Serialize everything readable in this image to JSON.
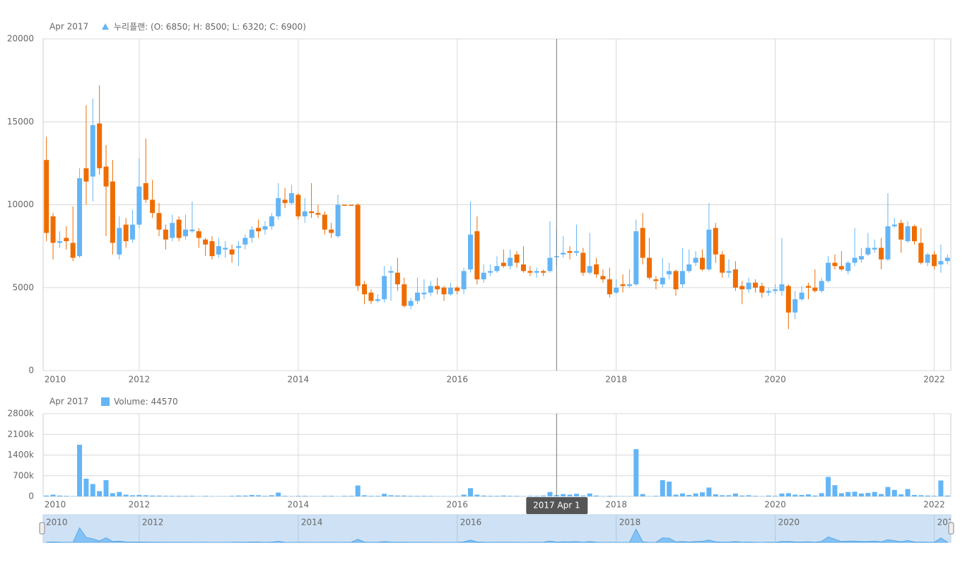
{
  "chart_data": [
    {
      "type": "candlestick",
      "legend_date": "Apr 2017",
      "legend_suffix": ": (O: 6850; H: 8500; L: 6320; C: 6900)",
      "crosshair_x": "2017-04",
      "crosshair_label": "2017 Apr 1",
      "x": [
        "2010-11",
        "2010-12",
        "2011-01",
        "2011-02",
        "2011-03",
        "2011-04",
        "2011-05",
        "2011-06",
        "2011-07",
        "2011-08",
        "2011-09",
        "2011-10",
        "2011-11",
        "2011-12",
        "2012-01",
        "2012-02",
        "2012-03",
        "2012-04",
        "2012-05",
        "2012-06",
        "2012-07",
        "2012-08",
        "2012-09",
        "2012-10",
        "2012-11",
        "2012-12",
        "2013-01",
        "2013-02",
        "2013-03",
        "2013-04",
        "2013-05",
        "2013-06",
        "2013-07",
        "2013-08",
        "2013-09",
        "2013-10",
        "2013-11",
        "2013-12",
        "2014-01",
        "2014-02",
        "2014-03",
        "2014-04",
        "2014-05",
        "2014-06",
        "2014-07",
        "2014-08",
        "2014-09",
        "2014-10",
        "2014-11",
        "2014-12",
        "2015-01",
        "2015-02",
        "2015-03",
        "2015-04",
        "2015-05",
        "2015-06",
        "2015-07",
        "2015-08",
        "2015-09",
        "2015-10",
        "2015-11",
        "2015-12",
        "2016-01",
        "2016-02",
        "2016-03",
        "2016-04",
        "2016-05",
        "2016-06",
        "2016-07",
        "2016-08",
        "2016-09",
        "2016-10",
        "2016-11",
        "2016-12",
        "2017-01",
        "2017-02",
        "2017-03",
        "2017-04",
        "2017-05",
        "2017-06",
        "2017-07",
        "2017-08",
        "2017-09",
        "2017-10",
        "2017-11",
        "2017-12",
        "2018-01",
        "2018-02",
        "2018-03",
        "2018-04",
        "2018-05",
        "2018-06",
        "2018-07",
        "2018-08",
        "2018-09",
        "2018-10",
        "2018-11",
        "2018-12",
        "2019-01",
        "2019-02",
        "2019-03",
        "2019-04",
        "2019-05",
        "2019-06",
        "2019-07",
        "2019-08",
        "2019-09",
        "2019-10",
        "2019-11",
        "2019-12",
        "2020-01",
        "2020-02",
        "2020-03",
        "2020-04",
        "2020-05",
        "2020-06",
        "2020-07",
        "2020-08",
        "2020-09",
        "2020-10",
        "2020-11",
        "2020-12",
        "2021-01",
        "2021-02",
        "2021-03",
        "2021-04",
        "2021-05",
        "2021-06",
        "2021-07",
        "2021-08",
        "2021-09",
        "2021-10",
        "2021-11",
        "2021-12",
        "2022-01",
        "2022-02",
        "2022-03"
      ],
      "series": [
        {
          "name": "누리플랜",
          "rising_color": "#64b5f6",
          "falling_color": "#ef6c00",
          "open": [
            12700,
            9300,
            7700,
            8000,
            7700,
            6900,
            12200,
            11700,
            14900,
            12300,
            11400,
            7000,
            8800,
            7900,
            8800,
            11300,
            10300,
            9500,
            8500,
            8000,
            9100,
            8100,
            8400,
            8400,
            7900,
            7800,
            7000,
            7300,
            7300,
            7400,
            7600,
            8000,
            8600,
            8500,
            8700,
            9300,
            10300,
            10100,
            10600,
            9300,
            9600,
            9500,
            9400,
            8500,
            8100,
            10000,
            10000,
            10000,
            5200,
            4700,
            4200,
            4300,
            5900,
            5900,
            5200,
            3900,
            4200,
            4600,
            4700,
            5100,
            5000,
            4600,
            5000,
            4900,
            6100,
            8400,
            5500,
            5900,
            6000,
            6500,
            6300,
            7000,
            6400,
            6000,
            5900,
            6000,
            6000,
            6850,
            7000,
            7200,
            7100,
            7100,
            5900,
            6400,
            5700,
            5500,
            4700,
            5200,
            5100,
            5200,
            8600,
            6800,
            5500,
            5200,
            5800,
            6000,
            5200,
            6000,
            6500,
            6800,
            6100,
            8600,
            7000,
            5900,
            6100,
            5100,
            4900,
            5300,
            5100,
            4700,
            4800,
            4800,
            5100,
            3500,
            4300,
            5100,
            5000,
            4800,
            5400,
            6500,
            6300,
            6000,
            6500,
            6700,
            7000,
            7300,
            7400,
            6700,
            8700,
            8900,
            7800,
            8700,
            7700,
            6500,
            7000,
            6400,
            6600
          ],
          "high": [
            14100,
            9500,
            8400,
            8700,
            9900,
            12200,
            16000,
            16400,
            17200,
            13600,
            12700,
            9300,
            9200,
            9700,
            12800,
            14000,
            11500,
            10100,
            8800,
            9400,
            9300,
            9400,
            10200,
            8600,
            8000,
            8100,
            8000,
            7800,
            7600,
            7800,
            8200,
            8700,
            9100,
            9000,
            9500,
            11300,
            11000,
            11200,
            10700,
            10400,
            11300,
            10000,
            9600,
            8900,
            10600,
            10000,
            10000,
            10100,
            5400,
            4900,
            4600,
            6300,
            6300,
            6800,
            5600,
            4400,
            5600,
            5500,
            5400,
            5600,
            5100,
            5300,
            5100,
            6200,
            10200,
            9300,
            6400,
            6400,
            6900,
            7300,
            7300,
            7200,
            7500,
            6300,
            6200,
            6100,
            9000,
            8500,
            8100,
            7500,
            8800,
            7400,
            8300,
            6800,
            6100,
            6200,
            5500,
            5800,
            6100,
            9100,
            9500,
            8000,
            5700,
            6800,
            6500,
            6100,
            7400,
            7300,
            7200,
            7300,
            10100,
            8900,
            7200,
            6700,
            6600,
            5400,
            5600,
            5500,
            5300,
            5000,
            5200,
            8000,
            5200,
            4800,
            5100,
            5300,
            6100,
            5600,
            6900,
            7000,
            7200,
            6600,
            8600,
            7400,
            8300,
            7900,
            8000,
            10700,
            9200,
            9100,
            9000,
            8800,
            8600,
            7100,
            7200,
            7600,
            7000
          ],
          "low": [
            7800,
            6700,
            7400,
            7300,
            6600,
            6800,
            10000,
            10200,
            11800,
            8100,
            7000,
            6700,
            7400,
            7700,
            8600,
            10100,
            9200,
            8100,
            7300,
            7800,
            7800,
            7900,
            8300,
            7400,
            6900,
            6700,
            6800,
            6800,
            6500,
            6300,
            7300,
            7700,
            8000,
            8200,
            8500,
            9100,
            9800,
            10000,
            9100,
            8900,
            9200,
            9200,
            8200,
            8000,
            8000,
            9950,
            9950,
            4800,
            4000,
            4000,
            4100,
            4100,
            4200,
            4800,
            3800,
            3700,
            4000,
            4300,
            4500,
            4600,
            4200,
            4500,
            4600,
            4600,
            5900,
            5200,
            5300,
            5700,
            5900,
            6200,
            6100,
            6200,
            5900,
            5700,
            5600,
            5700,
            5900,
            6320,
            6800,
            6700,
            6900,
            5700,
            5800,
            5600,
            5300,
            4400,
            4600,
            4700,
            5000,
            5100,
            6400,
            5500,
            4900,
            5000,
            5500,
            4500,
            5000,
            5900,
            6300,
            6000,
            6000,
            6500,
            5600,
            5600,
            4800,
            4000,
            4700,
            4700,
            4400,
            4500,
            4600,
            4500,
            2500,
            3100,
            4200,
            4300,
            4700,
            4700,
            5300,
            6100,
            6000,
            5800,
            6300,
            6500,
            6900,
            7100,
            6100,
            6600,
            8600,
            7100,
            7700,
            7600,
            6400,
            6300,
            6100,
            5900,
            6400
          ],
          "close": [
            8300,
            7700,
            7800,
            7800,
            6800,
            11600,
            11400,
            14800,
            12200,
            11100,
            7700,
            8600,
            7800,
            8800,
            11100,
            10300,
            9500,
            8500,
            7900,
            8900,
            8000,
            8500,
            8500,
            8000,
            7600,
            6900,
            7500,
            7400,
            7000,
            7500,
            8000,
            8500,
            8400,
            8700,
            9300,
            10400,
            10100,
            10700,
            9300,
            9600,
            9500,
            9400,
            8500,
            8300,
            10000,
            10000,
            10000,
            5100,
            4600,
            4200,
            4300,
            5700,
            6000,
            5200,
            3900,
            4200,
            4700,
            4700,
            5100,
            4900,
            4600,
            5000,
            4800,
            6000,
            8200,
            5500,
            5900,
            6000,
            6300,
            6300,
            6800,
            6500,
            6000,
            5900,
            6000,
            5900,
            6800,
            6900,
            7100,
            7100,
            7200,
            5900,
            6300,
            5800,
            5500,
            4600,
            5000,
            5100,
            5200,
            8400,
            6800,
            5600,
            5400,
            5600,
            6000,
            4900,
            6000,
            6400,
            6800,
            6100,
            8500,
            7000,
            5900,
            6000,
            5000,
            4900,
            5300,
            5000,
            4700,
            4800,
            4900,
            5200,
            3500,
            4300,
            4700,
            5000,
            4800,
            5400,
            6500,
            6300,
            6100,
            6500,
            6800,
            6900,
            7400,
            7400,
            6700,
            8700,
            8800,
            7900,
            8700,
            7800,
            6500,
            7000,
            6300,
            6600,
            6800
          ]
        }
      ],
      "xlim": [
        "2010-11",
        "2022-03"
      ],
      "xticks": [
        {
          "value": "2010-11",
          "label": "2010"
        },
        {
          "value": "2012-01",
          "label": "2012"
        },
        {
          "value": "2014-01",
          "label": "2014"
        },
        {
          "value": "2016-01",
          "label": "2016"
        },
        {
          "value": "2018-01",
          "label": "2018"
        },
        {
          "value": "2020-01",
          "label": "2020"
        },
        {
          "value": "2022-01",
          "label": "2022"
        }
      ],
      "ylim": [
        0,
        20000
      ],
      "yticks": [
        0,
        5000,
        10000,
        15000,
        20000
      ],
      "grid": true
    },
    {
      "type": "column",
      "legend_date": "Apr 2017",
      "legend_suffix": ": 44570",
      "series": [
        {
          "name": "Volume",
          "color": "#64b5f6",
          "values": [
            30000,
            60000,
            30000,
            20000,
            10000,
            1750000,
            600000,
            420000,
            180000,
            550000,
            110000,
            150000,
            60000,
            40000,
            50000,
            40000,
            30000,
            30000,
            20000,
            20000,
            20000,
            20000,
            20000,
            10000,
            20000,
            10000,
            10000,
            10000,
            20000,
            30000,
            30000,
            50000,
            40000,
            20000,
            40000,
            130000,
            20000,
            10000,
            20000,
            20000,
            10000,
            10000,
            20000,
            20000,
            10000,
            20000,
            20000,
            370000,
            40000,
            20000,
            20000,
            90000,
            40000,
            30000,
            30000,
            20000,
            20000,
            20000,
            20000,
            10000,
            10000,
            10000,
            10000,
            60000,
            280000,
            60000,
            30000,
            20000,
            20000,
            30000,
            20000,
            20000,
            10000,
            20000,
            20000,
            30000,
            150000,
            44570,
            80000,
            60000,
            90000,
            30000,
            100000,
            30000,
            10000,
            20000,
            10000,
            10000,
            10000,
            1600000,
            80000,
            10000,
            20000,
            550000,
            500000,
            60000,
            100000,
            50000,
            100000,
            140000,
            300000,
            70000,
            40000,
            40000,
            100000,
            30000,
            40000,
            20000,
            10000,
            30000,
            20000,
            100000,
            110000,
            60000,
            50000,
            70000,
            30000,
            110000,
            660000,
            380000,
            110000,
            150000,
            160000,
            100000,
            120000,
            150000,
            80000,
            320000,
            220000,
            70000,
            250000,
            50000,
            40000,
            30000,
            20000,
            540000,
            30000
          ]
        }
      ],
      "ylim": [
        0,
        2800000
      ],
      "yticks": [
        0,
        {
          "value": 700000,
          "label": "700k"
        },
        {
          "value": 1400000,
          "label": "1400k"
        },
        {
          "value": 2100000,
          "label": "2100k"
        },
        {
          "value": 2800000,
          "label": "2800k"
        }
      ],
      "grid": true
    }
  ]
}
